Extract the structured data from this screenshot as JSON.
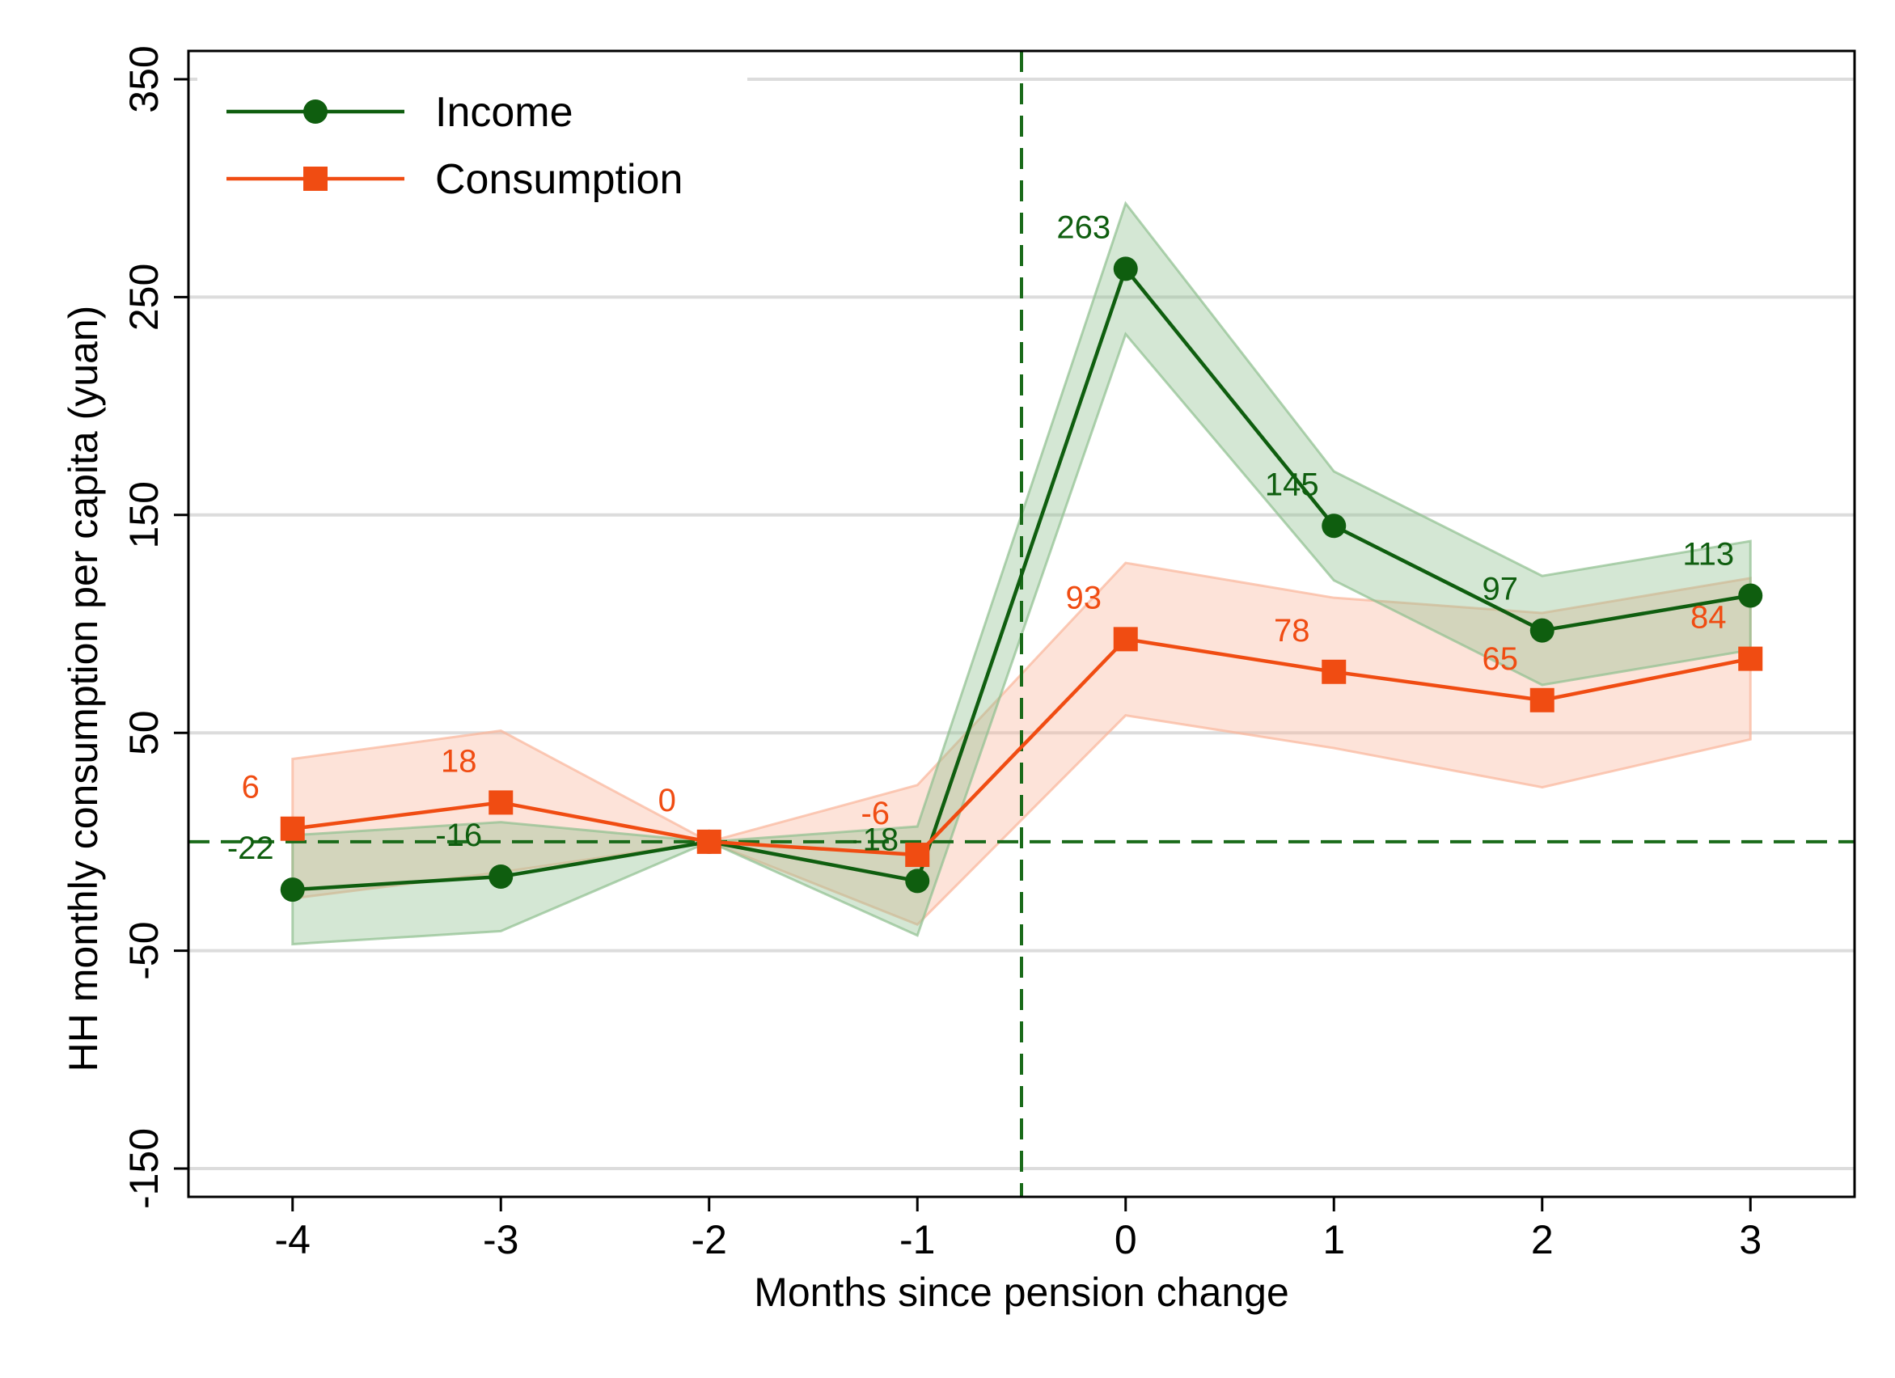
{
  "chart_data": {
    "type": "line",
    "title": "",
    "xlabel": "Months since pension change",
    "ylabel": "HH monthly consumption per capita (yuan)",
    "x": [
      -4,
      -3,
      -2,
      -1,
      0,
      1,
      2,
      3
    ],
    "xticks": [
      "-4",
      "-3",
      "-2",
      "-1",
      "0",
      "1",
      "2",
      "3"
    ],
    "xlim": [
      -4.5,
      3.5
    ],
    "ylim": [
      -163,
      363
    ],
    "yticks": [
      -150,
      -50,
      50,
      150,
      250,
      350
    ],
    "ytick_labels": [
      "-150",
      "-50",
      "50",
      "150",
      "250",
      "350"
    ],
    "grid": "horizontal",
    "legend_position": "top-left",
    "reference_lines": {
      "x": -0.5,
      "y": 0,
      "style": "dashed",
      "color": "#1a6b1a"
    },
    "series": [
      {
        "name": "Income",
        "marker": "circle",
        "color": "#0f5e0f",
        "band_color": "#8fbf8f",
        "values": [
          -22,
          -16,
          0,
          -18,
          263,
          145,
          97,
          113
        ],
        "ci_lower": [
          -47,
          -41,
          0,
          -43,
          233,
          120,
          72,
          88
        ],
        "ci_upper": [
          3,
          9,
          0,
          7,
          293,
          170,
          122,
          138
        ],
        "labels": [
          "-22",
          "-16",
          "0",
          "-18",
          "263",
          "145",
          "97",
          "113"
        ]
      },
      {
        "name": "Consumption",
        "marker": "square",
        "color": "#f04c12",
        "band_color": "#f9b59a",
        "values": [
          6,
          18,
          0,
          -6,
          93,
          78,
          65,
          84
        ],
        "ci_lower": [
          -26,
          -14,
          0,
          -38,
          58,
          43,
          25,
          47
        ],
        "ci_upper": [
          38,
          51,
          0,
          26,
          128,
          112,
          105,
          121
        ],
        "labels": [
          "6",
          "18",
          "0",
          "-6",
          "93",
          "78",
          "65",
          "84"
        ]
      }
    ]
  }
}
